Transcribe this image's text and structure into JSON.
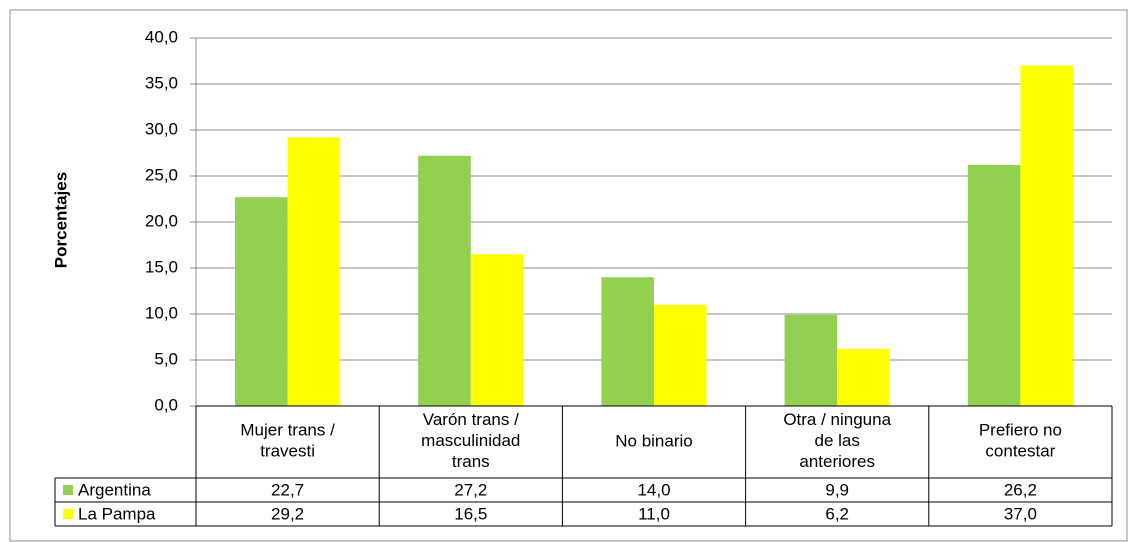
{
  "chart_data": {
    "type": "bar",
    "y_axis_label": "Porcentajes",
    "categories": [
      "Mujer trans /\ntravesti",
      "Varón trans /\nmasculinidad\ntrans",
      "No binario",
      "Otra / ninguna\nde las\nanteriores",
      "Prefiero no\ncontestar"
    ],
    "series": [
      {
        "name": "Argentina",
        "color": "#92d050",
        "values": [
          22.7,
          27.2,
          14.0,
          9.9,
          26.2
        ],
        "value_labels": [
          "22,7",
          "27,2",
          "14,0",
          "9,9",
          "26,2"
        ]
      },
      {
        "name": "La Pampa",
        "color": "#ffff00",
        "values": [
          29.2,
          16.5,
          11.0,
          6.2,
          37.0
        ],
        "value_labels": [
          "29,2",
          "16,5",
          "11,0",
          "6,2",
          "37,0"
        ]
      }
    ],
    "ylim": [
      0,
      40
    ],
    "yticks": [
      {
        "value": 0,
        "label": "0,0"
      },
      {
        "value": 5,
        "label": "5,0"
      },
      {
        "value": 10,
        "label": "10,0"
      },
      {
        "value": 15,
        "label": "15,0"
      },
      {
        "value": 20,
        "label": "20,0"
      },
      {
        "value": 25,
        "label": "25,0"
      },
      {
        "value": 30,
        "label": "30,0"
      },
      {
        "value": 35,
        "label": "35,0"
      },
      {
        "value": 40,
        "label": "40,0"
      }
    ],
    "grid": true
  }
}
